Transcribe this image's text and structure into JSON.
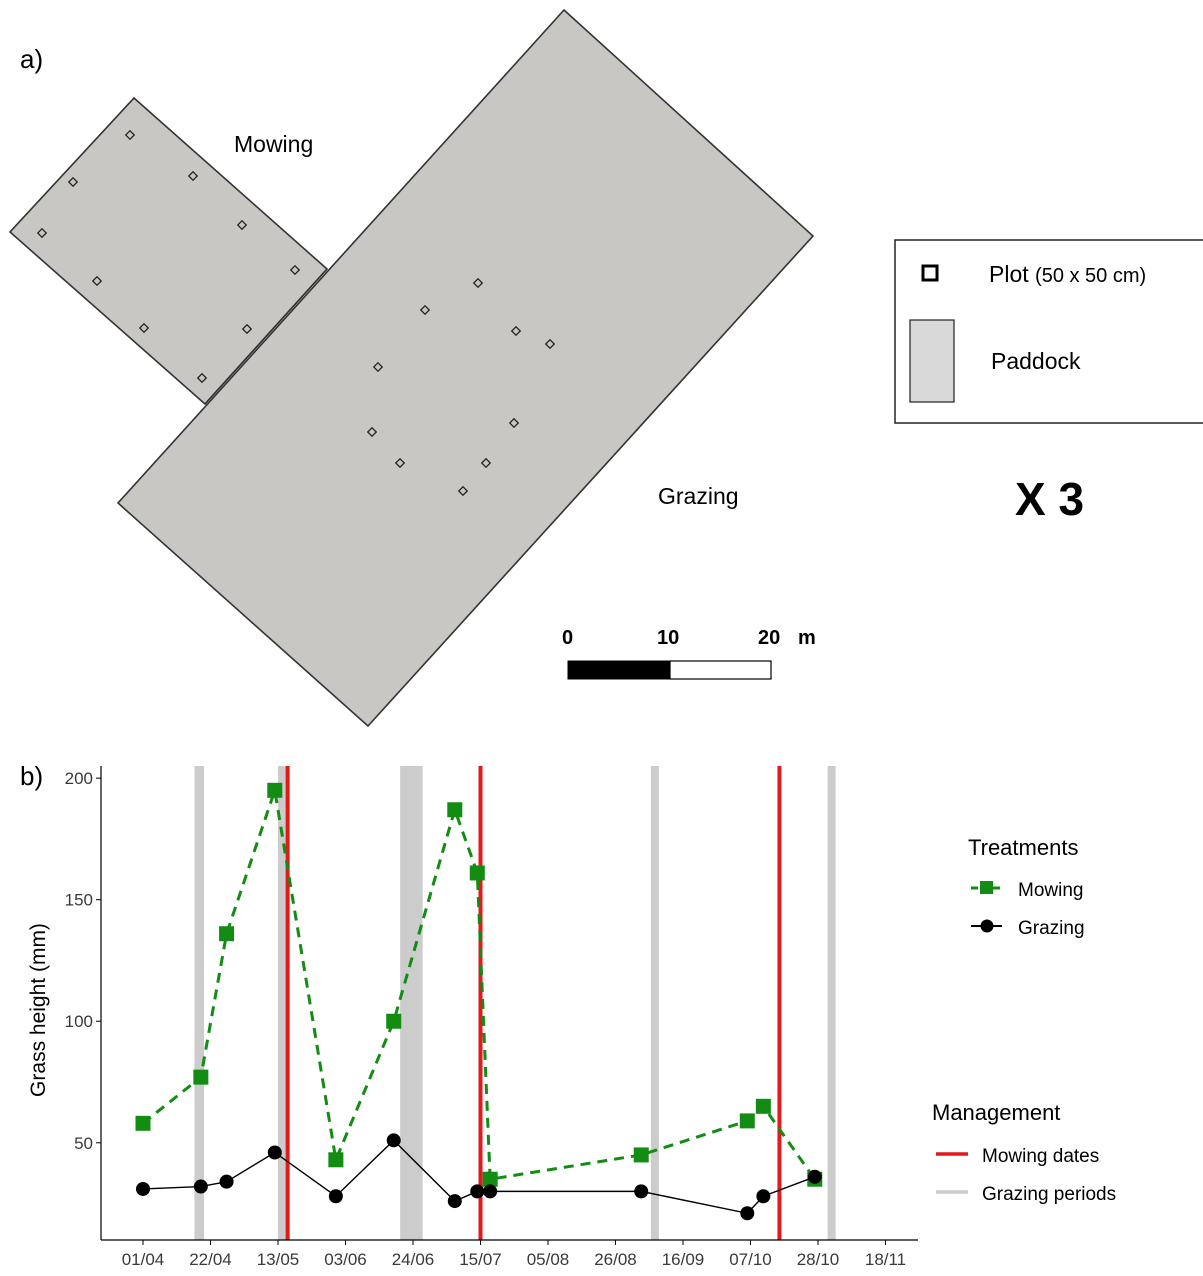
{
  "panel_a": {
    "label": "a)",
    "paddocks": [
      {
        "name": "Mowing",
        "plots": 10
      },
      {
        "name": "Grazing",
        "plots": 10
      }
    ],
    "legend": {
      "plot_label": "Plot",
      "plot_size": "(50 x 50 cm)",
      "paddock_label": "Paddock"
    },
    "replicates": "X 3",
    "scale_bar": {
      "ticks": [
        "0",
        "10",
        "20"
      ],
      "unit": "m"
    },
    "colors": {
      "paddock_fill": "#c9c7c4",
      "outline": "#333333",
      "legend_paddock_fill": "#d9d9d9"
    }
  },
  "panel_b": {
    "label": "b)",
    "legend": {
      "treatments_title": "Treatments",
      "management_title": "Management",
      "mowing_dates_label": "Mowing dates",
      "grazing_periods_label": "Grazing periods"
    }
  },
  "chart_data": {
    "type": "line",
    "title": "",
    "xlabel": "",
    "ylabel": "Grass height (mm)",
    "x_tick_labels": [
      "01/04",
      "22/04",
      "13/05",
      "03/06",
      "24/06",
      "15/07",
      "05/08",
      "26/08",
      "16/09",
      "07/10",
      "28/10",
      "18/11"
    ],
    "y_ticks": [
      50,
      100,
      150,
      200
    ],
    "ylim": [
      10,
      205
    ],
    "grid": false,
    "series": [
      {
        "name": "Mowing",
        "color": "#128c12",
        "marker": "square",
        "line_style": "dashed",
        "points": [
          [
            "01/04",
            58
          ],
          [
            "19/04",
            77
          ],
          [
            "27/04",
            136
          ],
          [
            "12/05",
            195
          ],
          [
            "31/05",
            43
          ],
          [
            "18/06",
            100
          ],
          [
            "07/07",
            187
          ],
          [
            "14/07",
            161
          ],
          [
            "18/07",
            35
          ],
          [
            "03/09",
            45
          ],
          [
            "06/10",
            59
          ],
          [
            "11/10",
            65
          ],
          [
            "27/10",
            35
          ]
        ]
      },
      {
        "name": "Grazing",
        "color": "#000000",
        "marker": "circle",
        "line_style": "solid",
        "points": [
          [
            "01/04",
            31
          ],
          [
            "19/04",
            32
          ],
          [
            "27/04",
            34
          ],
          [
            "12/05",
            46
          ],
          [
            "31/05",
            28
          ],
          [
            "18/06",
            51
          ],
          [
            "07/07",
            26
          ],
          [
            "14/07",
            30
          ],
          [
            "18/07",
            30
          ],
          [
            "03/09",
            30
          ],
          [
            "06/10",
            21
          ],
          [
            "11/10",
            28
          ],
          [
            "27/10",
            36
          ]
        ]
      }
    ],
    "mowing_dates": [
      "16/05",
      "15/07",
      "16/10"
    ],
    "mowing_dates_color": "#e31a1c",
    "grazing_periods": [
      [
        "17/04",
        "20/04"
      ],
      [
        "13/05",
        "16/05"
      ],
      [
        "20/06",
        "27/06"
      ],
      [
        "06/09",
        "07/09"
      ],
      [
        "31/10",
        "02/11"
      ]
    ],
    "grazing_periods_color": "#cccccc",
    "legend_position": "right"
  }
}
